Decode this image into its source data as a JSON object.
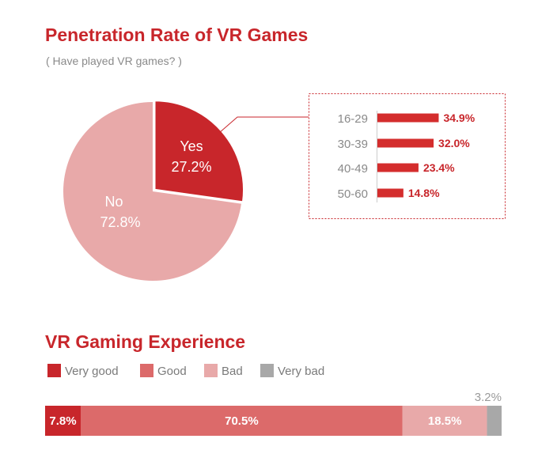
{
  "chart_data": [
    {
      "type": "pie",
      "title": "Penetration Rate of VR Games",
      "subtitle": "( Have played VR games? )",
      "slices": [
        {
          "label": "Yes",
          "value": 27.2,
          "value_label": "27.2%",
          "color": "#c8262b"
        },
        {
          "label": "No",
          "value": 72.8,
          "value_label": "72.8%",
          "color": "#e8a9a9"
        }
      ]
    },
    {
      "type": "bar",
      "orientation": "horizontal",
      "description_of": "Yes",
      "categories": [
        "16-29",
        "30-39",
        "40-49",
        "50-60"
      ],
      "values": [
        34.9,
        32.0,
        23.4,
        14.8
      ],
      "value_labels": [
        "34.9%",
        "32.0%",
        "23.4%",
        "14.8%"
      ],
      "color": "#d42d2d"
    },
    {
      "type": "bar",
      "orientation": "stacked-horizontal",
      "title": "VR Gaming Experience",
      "series": [
        {
          "name": "Very good",
          "value": 7.8,
          "value_label": "7.8%",
          "color": "#c8262b"
        },
        {
          "name": "Good",
          "value": 70.5,
          "value_label": "70.5%",
          "color": "#dc6a6a"
        },
        {
          "name": "Bad",
          "value": 18.5,
          "value_label": "18.5%",
          "color": "#e8a9a9"
        },
        {
          "name": "Very bad",
          "value": 3.2,
          "value_label": "3.2%",
          "color": "#a8a8a8"
        }
      ]
    }
  ]
}
